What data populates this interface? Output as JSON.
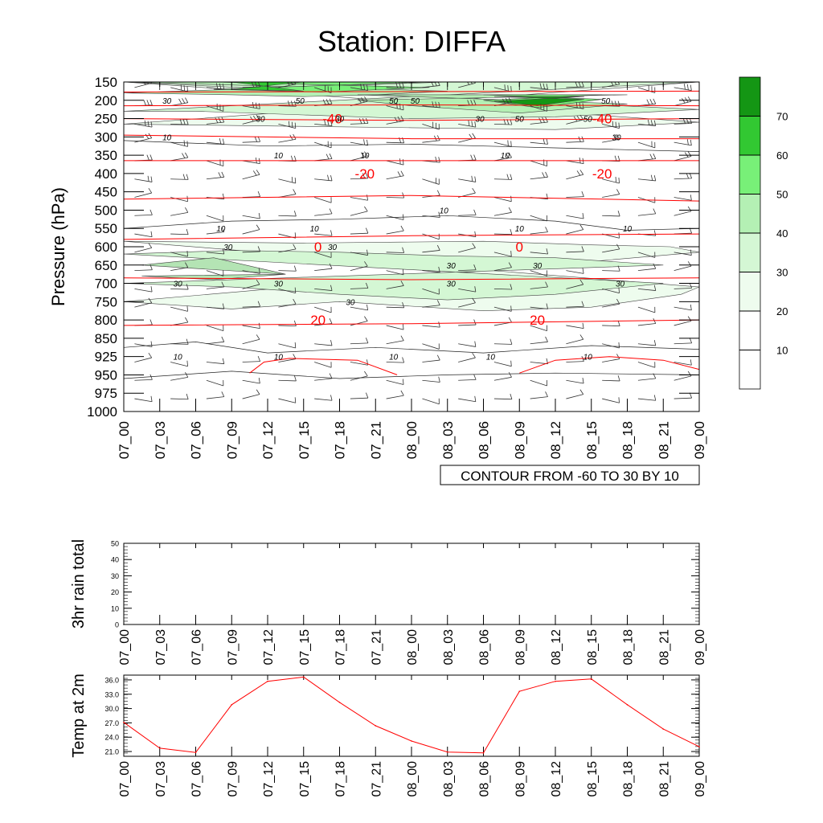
{
  "title": "Station: DIFFA",
  "chart_data": [
    {
      "type": "heatmap",
      "name": "pressure-time-cross-section",
      "ylabel": "Pressure (hPa)",
      "y_ticks": [
        "150",
        "200",
        "250",
        "300",
        "350",
        "400",
        "450",
        "500",
        "550",
        "600",
        "650",
        "700",
        "750",
        "800",
        "850",
        "925",
        "950",
        "975",
        "1000"
      ],
      "x_ticks": [
        "07_00",
        "07_03",
        "07_06",
        "07_09",
        "07_12",
        "07_15",
        "07_18",
        "07_21",
        "08_00",
        "08_03",
        "08_06",
        "08_09",
        "08_12",
        "08_15",
        "08_18",
        "08_21",
        "09_00"
      ],
      "contour_info": "CONTOUR FROM -60 TO 30 BY 10",
      "colorbar_labels": [
        "10",
        "20",
        "30",
        "40",
        "50",
        "60",
        "70"
      ],
      "colorbar_colors": [
        "#ffffff",
        "#ffffff",
        "#eefcee",
        "#d4f7d4",
        "#b4f0b4",
        "#78f078",
        "#32c832",
        "#149614"
      ],
      "temperature_contour_labels": [
        {
          "text": "-40",
          "t": 5.8,
          "level": "250"
        },
        {
          "text": "-40",
          "t": 13.3,
          "level": "250"
        },
        {
          "text": "-20",
          "t": 6.7,
          "level": "400"
        },
        {
          "text": "-20",
          "t": 13.3,
          "level": "400"
        },
        {
          "text": "0",
          "t": 5.4,
          "level": "600"
        },
        {
          "text": "0",
          "t": 11.0,
          "level": "600"
        },
        {
          "text": "20",
          "t": 5.4,
          "level": "800"
        },
        {
          "text": "20",
          "t": 11.5,
          "level": "800"
        }
      ],
      "wind_contour_labels": [
        {
          "text": "30",
          "t": 1.2,
          "level": "200"
        },
        {
          "text": "50",
          "t": 4.9,
          "level": "200"
        },
        {
          "text": "50",
          "t": 7.5,
          "level": "200"
        },
        {
          "text": "50",
          "t": 8.1,
          "level": "200"
        },
        {
          "text": "50",
          "t": 13.4,
          "level": "200"
        },
        {
          "text": "50",
          "t": 11.0,
          "level": "250"
        },
        {
          "text": "50",
          "t": 12.9,
          "level": "250"
        },
        {
          "text": "30",
          "t": 3.8,
          "level": "250"
        },
        {
          "text": "30",
          "t": 6.0,
          "level": "250"
        },
        {
          "text": "30",
          "t": 9.9,
          "level": "250"
        },
        {
          "text": "30",
          "t": 13.7,
          "level": "300"
        },
        {
          "text": "10",
          "t": 1.2,
          "level": "300"
        },
        {
          "text": "10",
          "t": 4.3,
          "level": "350"
        },
        {
          "text": "10",
          "t": 6.7,
          "level": "350"
        },
        {
          "text": "10",
          "t": 10.6,
          "level": "350"
        },
        {
          "text": "10",
          "t": 8.9,
          "level": "500"
        },
        {
          "text": "10",
          "t": 2.7,
          "level": "550"
        },
        {
          "text": "10",
          "t": 5.3,
          "level": "550"
        },
        {
          "text": "10",
          "t": 11.0,
          "level": "550"
        },
        {
          "text": "10",
          "t": 14.0,
          "level": "550"
        },
        {
          "text": "30",
          "t": 2.9,
          "level": "600"
        },
        {
          "text": "30",
          "t": 5.8,
          "level": "600"
        },
        {
          "text": "30",
          "t": 9.1,
          "level": "650"
        },
        {
          "text": "30",
          "t": 11.5,
          "level": "650"
        },
        {
          "text": "30",
          "t": 9.1,
          "level": "700"
        },
        {
          "text": "30",
          "t": 13.8,
          "level": "700"
        },
        {
          "text": "30",
          "t": 1.5,
          "level": "700"
        },
        {
          "text": "30",
          "t": 4.3,
          "level": "700"
        },
        {
          "text": "30",
          "t": 6.3,
          "level": "750"
        },
        {
          "text": "10",
          "t": 1.5,
          "level": "925"
        },
        {
          "text": "10",
          "t": 4.3,
          "level": "925"
        },
        {
          "text": "10",
          "t": 7.5,
          "level": "925"
        },
        {
          "text": "10",
          "t": 10.2,
          "level": "925"
        },
        {
          "text": "10",
          "t": 12.9,
          "level": "925"
        }
      ]
    },
    {
      "type": "line",
      "name": "rain-chart",
      "ylabel": "3hr rain total",
      "ylim": [
        0,
        50
      ],
      "y_ticks": [
        "0",
        "10",
        "20",
        "30",
        "40",
        "50"
      ],
      "x": [
        "07_00",
        "07_03",
        "07_06",
        "07_09",
        "07_12",
        "07_15",
        "07_18",
        "07_21",
        "08_00",
        "08_03",
        "08_06",
        "08_09",
        "08_12",
        "08_15",
        "08_18",
        "08_21",
        "09_00"
      ],
      "values": [
        0,
        0,
        0,
        0,
        0,
        0,
        0,
        0,
        0,
        0,
        0,
        0,
        0,
        0,
        0,
        0,
        0
      ]
    },
    {
      "type": "line",
      "name": "temp-chart",
      "ylabel": "Temp at 2m",
      "ylim": [
        20.0,
        37.0
      ],
      "y_ticks": [
        "21.0",
        "24.0",
        "27.0",
        "30.0",
        "33.0",
        "36.0"
      ],
      "x": [
        "07_00",
        "07_03",
        "07_06",
        "07_09",
        "07_12",
        "07_15",
        "07_18",
        "07_21",
        "08_00",
        "08_03",
        "08_06",
        "08_09",
        "08_12",
        "08_15",
        "08_18",
        "08_21",
        "09_00"
      ],
      "values": [
        27.1,
        21.7,
        20.8,
        30.8,
        35.7,
        36.6,
        31.3,
        26.4,
        23.2,
        20.9,
        20.7,
        33.6,
        35.7,
        36.2,
        30.8,
        25.7,
        22.0
      ],
      "color": "#ff0000"
    }
  ]
}
